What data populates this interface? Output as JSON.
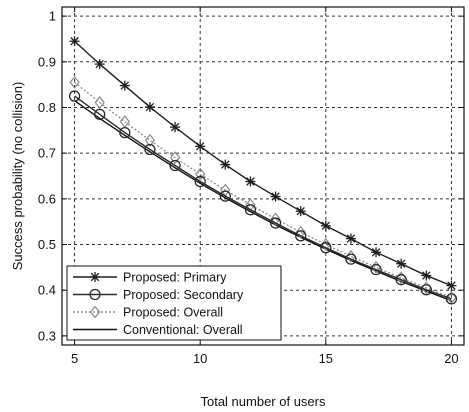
{
  "chart_data": {
    "type": "line",
    "title": "",
    "xlabel": "Total number of users",
    "ylabel": "Success probability (no collision)",
    "xlim": [
      4.5,
      20.5
    ],
    "ylim": [
      0.28,
      1.02
    ],
    "xticks": [
      5,
      10,
      15,
      20
    ],
    "yticks": [
      0.3,
      0.4,
      0.5,
      0.6,
      0.7,
      0.8,
      0.9,
      1
    ],
    "xtick_labels": [
      "5",
      "10",
      "15",
      "20"
    ],
    "ytick_labels": [
      "0.3",
      "0.4",
      "0.5",
      "0.6",
      "0.7",
      "0.8",
      "0.9",
      "1"
    ],
    "grid": true,
    "legend_position": "bottom-left",
    "x": [
      5,
      6,
      7,
      8,
      9,
      10,
      11,
      12,
      13,
      14,
      15,
      16,
      17,
      18,
      19,
      20
    ],
    "series": [
      {
        "name": "Proposed: Primary",
        "marker": "star",
        "line_style": "solid",
        "color": "#1f1f1f",
        "values": [
          0.945,
          0.895,
          0.848,
          0.801,
          0.757,
          0.715,
          0.675,
          0.638,
          0.605,
          0.573,
          0.541,
          0.513,
          0.483,
          0.458,
          0.432,
          0.41
        ]
      },
      {
        "name": "Proposed: Secondary",
        "marker": "circle",
        "line_style": "solid",
        "color": "#2a2a2a",
        "values": [
          0.825,
          0.785,
          0.745,
          0.708,
          0.673,
          0.638,
          0.606,
          0.576,
          0.547,
          0.519,
          0.493,
          0.468,
          0.445,
          0.423,
          0.401,
          0.381
        ]
      },
      {
        "name": "Proposed: Overall",
        "marker": "diamond",
        "line_style": "dotted",
        "color": "#8a8a8a",
        "values": [
          0.855,
          0.811,
          0.769,
          0.728,
          0.69,
          0.654,
          0.619,
          0.587,
          0.556,
          0.527,
          0.5,
          0.474,
          0.45,
          0.427,
          0.405,
          0.384
        ]
      },
      {
        "name": "Conventional: Overall",
        "marker": "none",
        "line_style": "solid",
        "color": "#111111",
        "values": [
          0.815,
          0.776,
          0.739,
          0.703,
          0.668,
          0.634,
          0.602,
          0.572,
          0.543,
          0.516,
          0.49,
          0.465,
          0.442,
          0.419,
          0.398,
          0.377
        ]
      }
    ]
  }
}
